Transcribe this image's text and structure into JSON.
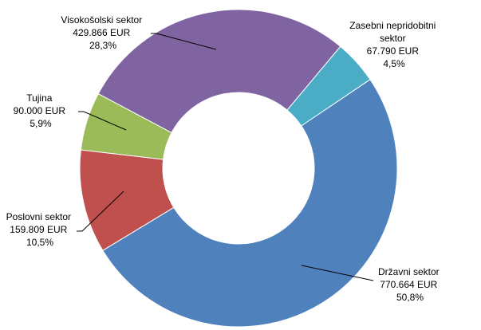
{
  "chart_data": {
    "type": "doughnut",
    "title": "",
    "start_angle_deg": 56,
    "slices": [
      {
        "name": "Državni sektor",
        "value_label": "770.664 EUR",
        "value": 770664,
        "percent_label": "50,8%",
        "percent": 50.8,
        "color": "#4f81bd"
      },
      {
        "name": "Poslovni sektor",
        "value_label": "159.809 EUR",
        "value": 159809,
        "percent_label": "10,5%",
        "percent": 10.5,
        "color": "#c0504d"
      },
      {
        "name": "Tujina",
        "value_label": "90.000 EUR",
        "value": 90000,
        "percent_label": "5,9%",
        "percent": 5.9,
        "color": "#9bbb59"
      },
      {
        "name": "Visokošolski sektor",
        "value_label": "429.866 EUR",
        "value": 429866,
        "percent_label": "28,3%",
        "percent": 28.3,
        "color": "#8064a2"
      },
      {
        "name_lines": [
          "Zasebni nepridobitni",
          "sektor"
        ],
        "value_label": "67.790 EUR",
        "value": 67790,
        "percent_label": "4,5%",
        "percent": 4.5,
        "color": "#4bacc6"
      }
    ]
  }
}
